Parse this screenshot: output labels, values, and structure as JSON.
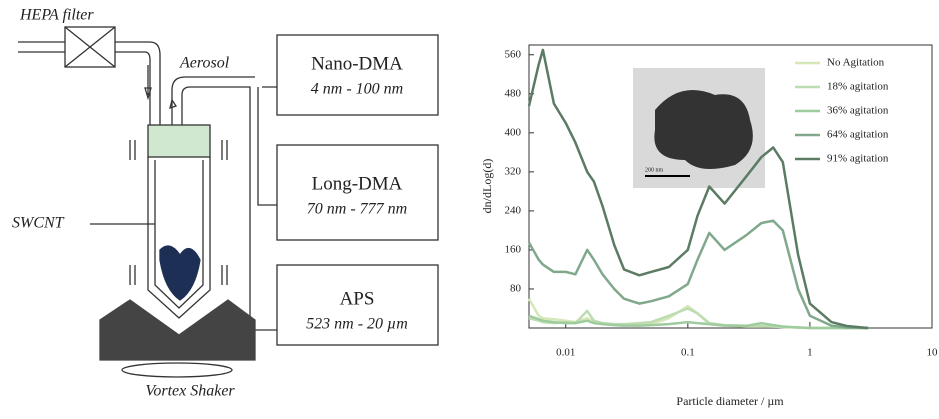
{
  "diagram": {
    "filter_label": "HEPA filter",
    "aerosol_label": "Aerosol",
    "sample_label": "SWCNT",
    "shaker_label": "Vortex Shaker",
    "instruments": [
      {
        "name": "Nano-DMA",
        "range": "4 nm - 100 nm"
      },
      {
        "name": "Long-DMA",
        "range": "70 nm - 777 nm"
      },
      {
        "name": "APS",
        "range": "523 nm - 20 µm"
      }
    ]
  },
  "chart_data": {
    "type": "line",
    "x_label": "Particle diameter / µm",
    "y_label": "dn/dLog(d)",
    "inset_scale_label": "200 nm",
    "x_scale": "log",
    "xlim": [
      0.005,
      10
    ],
    "xticks": [
      0.01,
      0.1,
      1,
      10
    ],
    "ylim": [
      0,
      580
    ],
    "yticks": [
      80,
      160,
      240,
      320,
      400,
      480,
      560
    ],
    "legend": "upper right",
    "x": [
      0.005,
      0.006,
      0.0065,
      0.008,
      0.01,
      0.012,
      0.015,
      0.017,
      0.02,
      0.025,
      0.03,
      0.04,
      0.05,
      0.07,
      0.1,
      0.12,
      0.15,
      0.2,
      0.3,
      0.4,
      0.5,
      0.6,
      0.8,
      1,
      1.5,
      2,
      3
    ],
    "series": [
      {
        "name": "No Agitation",
        "color": "#d6e8b8",
        "values": [
          60,
          25,
          20,
          18,
          15,
          12,
          20,
          12,
          10,
          8,
          6,
          6,
          8,
          20,
          45,
          30,
          8,
          5,
          3,
          3,
          3,
          2,
          1,
          0,
          0,
          0,
          0
        ]
      },
      {
        "name": "18% agitation",
        "color": "#bddcb2",
        "values": [
          20,
          15,
          12,
          10,
          12,
          10,
          35,
          15,
          10,
          8,
          8,
          10,
          12,
          25,
          40,
          30,
          10,
          6,
          5,
          4,
          3,
          2,
          1,
          0,
          0,
          0,
          0
        ]
      },
      {
        "name": "36% agitation",
        "color": "#9fcc9f",
        "values": [
          25,
          18,
          15,
          12,
          10,
          10,
          15,
          10,
          8,
          6,
          5,
          5,
          6,
          8,
          12,
          10,
          8,
          5,
          4,
          10,
          6,
          3,
          1,
          0,
          0,
          0,
          0
        ]
      },
      {
        "name": "64% agitation",
        "color": "#80a88b",
        "values": [
          175,
          140,
          130,
          115,
          115,
          110,
          160,
          140,
          110,
          80,
          60,
          50,
          55,
          65,
          90,
          140,
          195,
          160,
          190,
          215,
          220,
          200,
          80,
          25,
          5,
          1,
          0
        ]
      },
      {
        "name": "91% agitation",
        "color": "#5b7b63",
        "values": [
          455,
          540,
          570,
          460,
          420,
          380,
          320,
          300,
          250,
          170,
          120,
          108,
          115,
          125,
          160,
          230,
          290,
          255,
          310,
          350,
          370,
          340,
          150,
          50,
          12,
          4,
          0
        ]
      }
    ]
  }
}
